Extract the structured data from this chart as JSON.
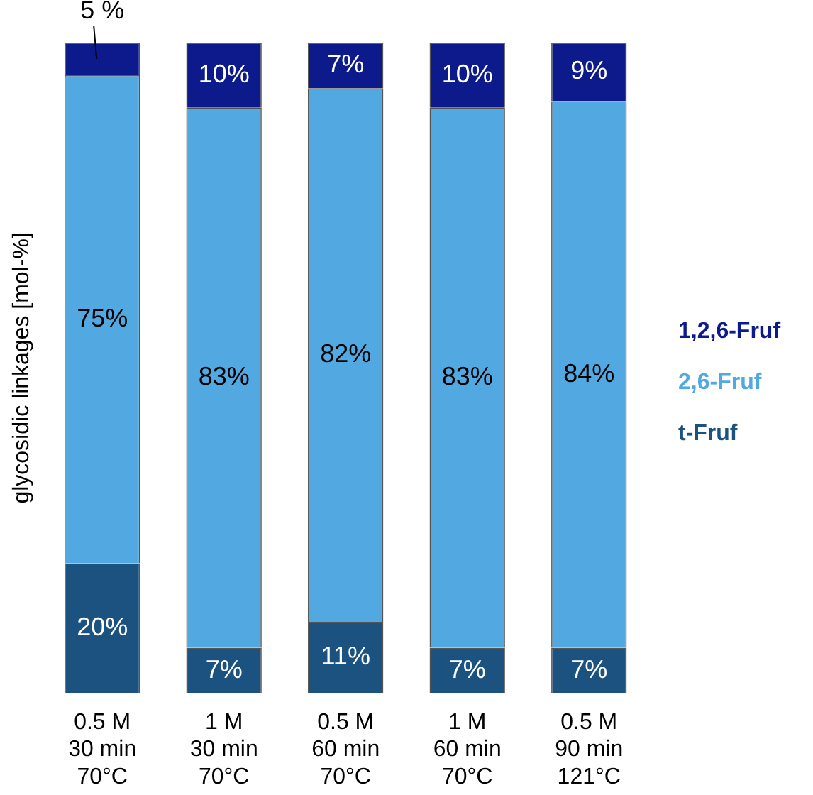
{
  "chart_data": {
    "type": "bar",
    "stacked": true,
    "ylabel": "glycosidic linkages [mol-%]",
    "ylim": [
      0,
      100
    ],
    "tick_labels": "x",
    "legend": "right",
    "grid": false,
    "categories": [
      "0.5 M\n30 min\n70°C",
      "1 M\n30 min\n70°C",
      "0.5 M\n60 min\n70°C",
      "1 M\n60 min\n70°C",
      "0.5 M\n90 min\n121°C"
    ],
    "series": [
      {
        "name": "t-Fruf",
        "color": "#1b5280",
        "values": [
          20,
          7,
          11,
          7,
          7
        ],
        "value_labels": [
          "20%",
          "7%",
          "11%",
          "7%",
          "7%"
        ]
      },
      {
        "name": "2,6-Fruf",
        "color": "#52a8e0",
        "values": [
          75,
          83,
          82,
          83,
          84
        ],
        "value_labels": [
          "75%",
          "83%",
          "82%",
          "83%",
          "84%"
        ]
      },
      {
        "name": "1,2,6-Fruf",
        "color": "#0c1a8c",
        "values": [
          5,
          10,
          7,
          10,
          9
        ],
        "value_labels": [
          "5 %",
          "10%",
          "7%",
          "10%",
          "9%"
        ]
      }
    ]
  }
}
